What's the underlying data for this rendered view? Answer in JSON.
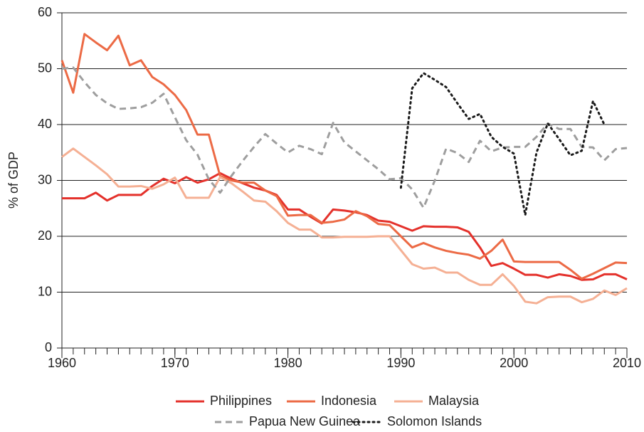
{
  "chart_data": {
    "type": "line",
    "y_label": "% of GDP",
    "x": [
      1960,
      1961,
      1962,
      1963,
      1964,
      1965,
      1966,
      1967,
      1968,
      1969,
      1970,
      1971,
      1972,
      1973,
      1974,
      1975,
      1976,
      1977,
      1978,
      1979,
      1980,
      1981,
      1982,
      1983,
      1984,
      1985,
      1986,
      1987,
      1988,
      1989,
      1990,
      1991,
      1992,
      1993,
      1994,
      1995,
      1996,
      1997,
      1998,
      1999,
      2000,
      2001,
      2002,
      2003,
      2004,
      2005,
      2006,
      2007,
      2008,
      2009,
      2010
    ],
    "xlim": [
      1960,
      2010
    ],
    "xticks": [
      1960,
      1970,
      1980,
      1990,
      2000,
      2010
    ],
    "ylim": [
      0,
      60
    ],
    "yticks": [
      0,
      10,
      20,
      30,
      40,
      50,
      60
    ],
    "grid": true,
    "legend": "bottom",
    "series": [
      {
        "name": "Philippines",
        "color": "#e4312b",
        "dash": "solid",
        "values": [
          26.8,
          26.8,
          26.8,
          27.8,
          26.4,
          27.4,
          27.4,
          27.4,
          29,
          30.3,
          29.5,
          30.6,
          29.6,
          30.2,
          31.3,
          30.3,
          29.5,
          28.7,
          28.2,
          27.4,
          24.8,
          24.8,
          23.5,
          22.3,
          24.8,
          24.6,
          24.3,
          23.8,
          22.8,
          22.6,
          21.8,
          21,
          21.8,
          21.7,
          21.7,
          21.6,
          20.8,
          18,
          14.7,
          15.2,
          14.2,
          13.1,
          13.1,
          12.6,
          13.2,
          12.9,
          12.2,
          12.3,
          13.2,
          13.2,
          12.3
        ]
      },
      {
        "name": "Indonesia",
        "color": "#ec6a45",
        "dash": "solid",
        "values": [
          51.5,
          45.7,
          56.2,
          54.7,
          53.3,
          55.9,
          50.6,
          51.5,
          48.5,
          47.2,
          45.3,
          42.6,
          38.2,
          38.2,
          30.8,
          30,
          29.6,
          29.6,
          28.2,
          27.2,
          23.7,
          23.8,
          23.8,
          22.4,
          22.6,
          23,
          24.5,
          23.6,
          22.2,
          22,
          20,
          18,
          18.8,
          18,
          17.4,
          17,
          16.7,
          16,
          17.4,
          19.4,
          15.5,
          15.4,
          15.4,
          15.4,
          15.4,
          14,
          12.4,
          13.3,
          14.3,
          15.3,
          15.2
        ]
      },
      {
        "name": "Malaysia",
        "color": "#f5b094",
        "dash": "solid",
        "values": [
          34.2,
          35.7,
          34.2,
          32.7,
          31.1,
          28.9,
          28.9,
          29,
          28.5,
          29.3,
          30.5,
          26.9,
          26.9,
          26.9,
          30.6,
          29.5,
          28,
          26.4,
          26.2,
          24.5,
          22.4,
          21.2,
          21.2,
          19.8,
          19.8,
          19.9,
          19.9,
          19.9,
          20,
          20,
          17.5,
          15,
          14.2,
          14.4,
          13.5,
          13.5,
          12.2,
          11.3,
          11.3,
          13.2,
          11.1,
          8.3,
          8,
          9.1,
          9.2,
          9.2,
          8.2,
          8.8,
          10.3,
          9.5,
          10.7
        ]
      },
      {
        "name": "Papua New Guinea",
        "color": "#9e9e9e",
        "dash": "dashed",
        "values": [
          50,
          50.2,
          47.6,
          45.3,
          43.8,
          42.8,
          42.9,
          43.1,
          43.9,
          45.5,
          41.3,
          37.2,
          34.6,
          30.2,
          27.8,
          30.8,
          33.5,
          36,
          38.3,
          36.6,
          35,
          36.2,
          35.6,
          34.7,
          40.3,
          36.8,
          35.2,
          33.6,
          32,
          30.2,
          30.4,
          28.4,
          25.1,
          30,
          35.7,
          34.9,
          33.3,
          37.1,
          35.2,
          35.9,
          36,
          36,
          37.8,
          40.2,
          39.2,
          39.2,
          36,
          35.9,
          33.6,
          35.6,
          35.8
        ]
      },
      {
        "name": "Solomon Islands",
        "color": "#1a1a1a",
        "dash": "dotted",
        "values": [
          null,
          null,
          null,
          null,
          null,
          null,
          null,
          null,
          null,
          null,
          null,
          null,
          null,
          null,
          null,
          null,
          null,
          null,
          null,
          null,
          null,
          null,
          null,
          null,
          null,
          null,
          null,
          null,
          null,
          null,
          28.7,
          46.5,
          49.2,
          48,
          46.7,
          43.8,
          41,
          41.9,
          37.8,
          36,
          34.8,
          23.8,
          35,
          40.2,
          37.4,
          34.5,
          35.3,
          44.2,
          40,
          null,
          null
        ]
      }
    ]
  }
}
